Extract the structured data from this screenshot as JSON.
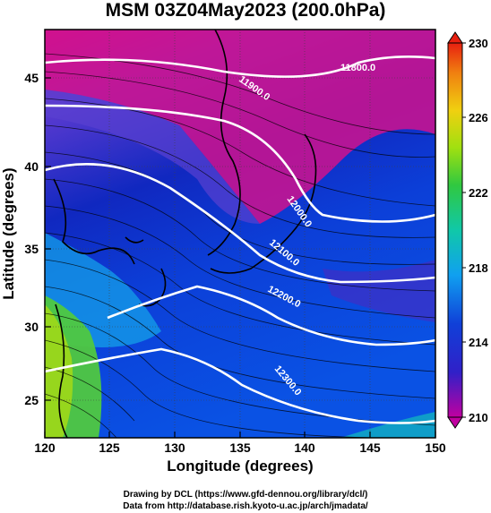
{
  "title": "MSM 03Z04May2023 (200.0hPa)",
  "axes": {
    "xlabel": "Longitude (degrees)",
    "ylabel": "Latitude  (degrees)",
    "x_ticks": [
      "120",
      "125",
      "130",
      "135",
      "140",
      "145",
      "150"
    ],
    "y_ticks": [
      "45",
      "40",
      "35",
      "30",
      "25"
    ]
  },
  "colorbar": {
    "ticks": [
      "230",
      "226",
      "222",
      "218",
      "214",
      "210"
    ],
    "colors": [
      "#cc00aa",
      "#e0289c",
      "#6040d8",
      "#1230c8",
      "#0a60e0",
      "#12a8ee",
      "#10d0b8",
      "#30c850",
      "#80d820",
      "#d8e010",
      "#f0c010",
      "#f08010",
      "#e83010"
    ]
  },
  "contours": {
    "labels": [
      "11800.0",
      "11900.0",
      "12000.0",
      "12100.0",
      "12200.0",
      "12300.0"
    ]
  },
  "credits": {
    "line1": "Drawing by DCL (https://www.gfd-dennou.org/library/dcl/)",
    "line2": "Data from http://database.rish.kyoto-u.ac.jp/arch/jmadata/"
  }
}
